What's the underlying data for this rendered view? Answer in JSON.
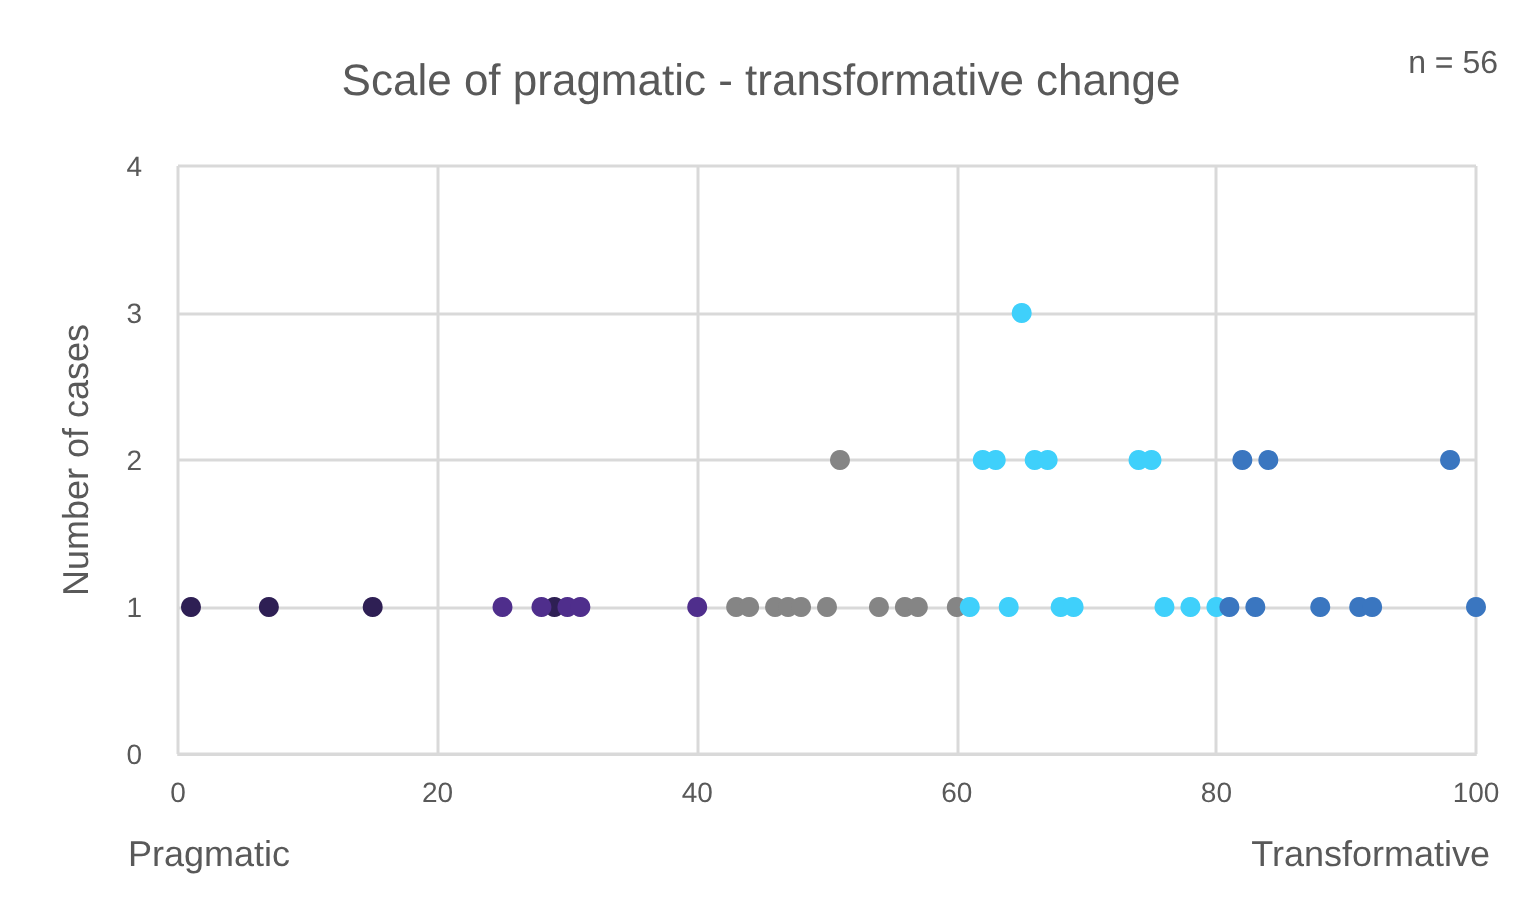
{
  "chart_data": {
    "type": "scatter",
    "title": "Scale of pragmatic - transformative change",
    "ylabel": "Number of cases",
    "annotations": [
      "n = 56",
      "Pragmatic",
      "Transformative"
    ],
    "series": [
      {
        "color": "#2e1f54",
        "x": [
          1,
          7,
          15,
          29
        ],
        "values": [
          1,
          1,
          1,
          1
        ]
      },
      {
        "color": "#4f2e8c",
        "x": [
          25,
          28,
          30,
          31,
          40
        ],
        "values": [
          1,
          1,
          1,
          1,
          1
        ]
      },
      {
        "color": "#858585",
        "x": [
          43,
          44,
          46,
          47,
          48,
          50,
          54,
          56,
          57,
          60,
          51
        ],
        "values": [
          1,
          1,
          1,
          1,
          1,
          1,
          1,
          1,
          1,
          1,
          2
        ]
      },
      {
        "color": "#3fd0fb",
        "x": [
          61,
          64,
          68,
          69,
          76,
          78,
          80,
          62,
          63,
          66,
          67,
          74,
          75,
          65
        ],
        "values": [
          1,
          1,
          1,
          1,
          1,
          1,
          1,
          2,
          2,
          2,
          2,
          2,
          2,
          3
        ]
      },
      {
        "color": "#3a76c0",
        "x": [
          81,
          83,
          88,
          91,
          92,
          100,
          82,
          84,
          98
        ],
        "values": [
          1,
          1,
          1,
          1,
          1,
          1,
          2,
          2,
          2
        ]
      }
    ],
    "xlim": [
      0,
      100
    ],
    "xticks": [
      0,
      20,
      40,
      60,
      80,
      100
    ],
    "ylim": [
      0,
      4
    ],
    "yticks": [
      0,
      1,
      2,
      3,
      4
    ],
    "grid": true,
    "marker": "circle"
  }
}
